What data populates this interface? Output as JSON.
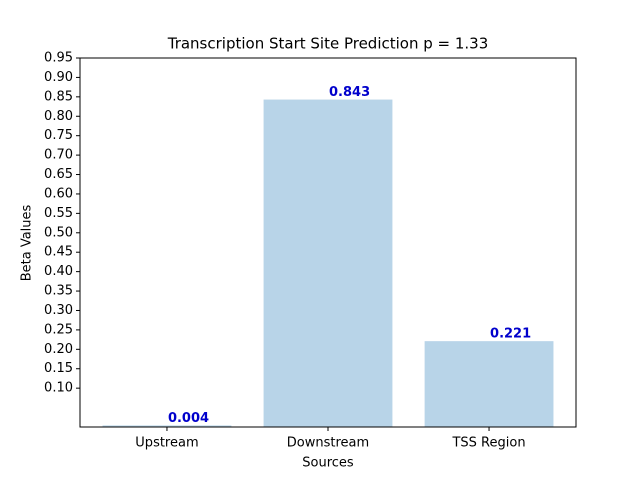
{
  "chart_data": {
    "type": "bar",
    "title": "Transcription Start Site Prediction p = 1.33",
    "xlabel": "Sources",
    "ylabel": "Beta Values",
    "categories": [
      "Upstream",
      "Downstream",
      "TSS Region"
    ],
    "values": [
      0.004,
      0.843,
      0.221
    ],
    "color": "#b8d4e8",
    "value_label_color": "#0000cc",
    "ylim": [
      0,
      0.95
    ],
    "yticks": [
      {
        "value": 0.1,
        "label": "0.10"
      },
      0.15,
      {
        "value": 0.2,
        "label": "0.20"
      },
      0.25,
      {
        "value": 0.3,
        "label": "0.30"
      },
      0.35,
      {
        "value": 0.4,
        "label": "0.40"
      },
      0.45,
      {
        "value": 0.5,
        "label": "0.50"
      },
      0.55,
      {
        "value": 0.6,
        "label": "0.60"
      },
      0.65,
      {
        "value": 0.7,
        "label": "0.70"
      },
      0.75,
      {
        "value": 0.8,
        "label": "0.80"
      },
      0.85,
      {
        "value": 0.9,
        "label": "0.90"
      },
      0.95
    ]
  }
}
